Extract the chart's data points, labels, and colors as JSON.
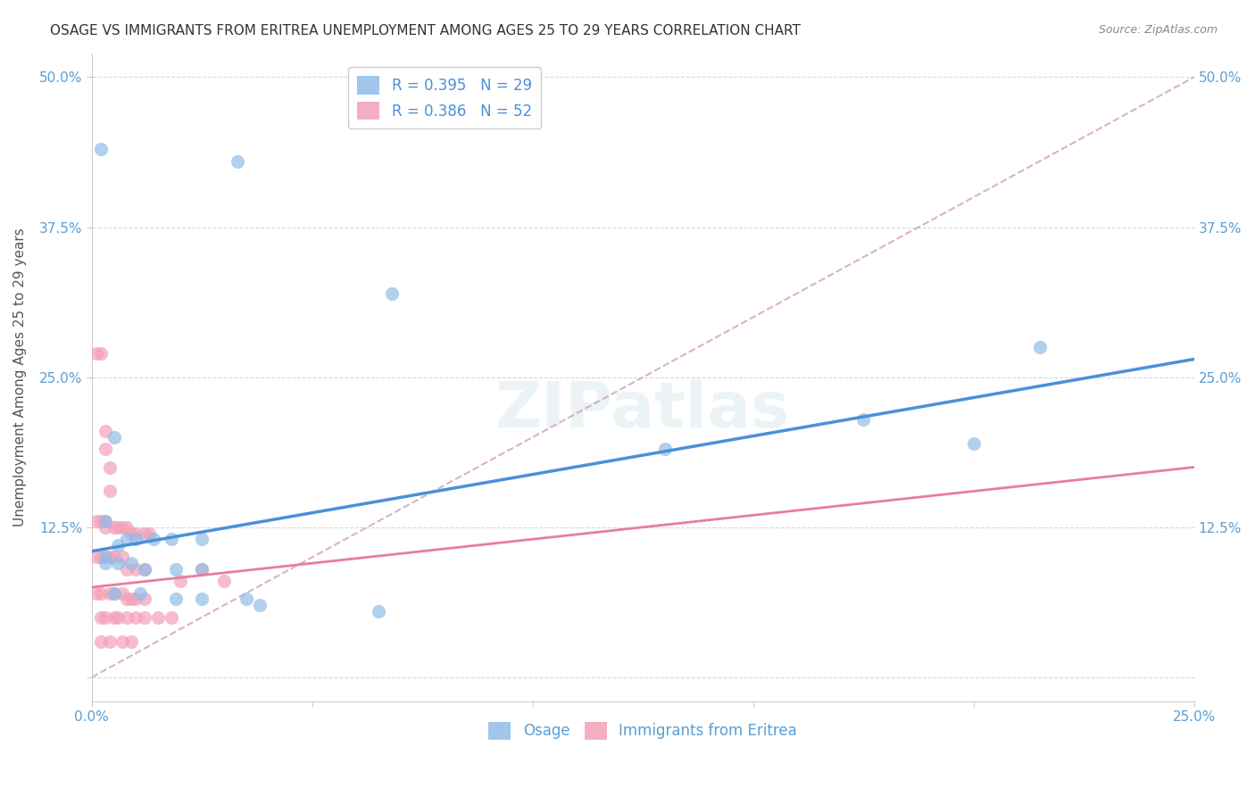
{
  "title": "OSAGE VS IMMIGRANTS FROM ERITREA UNEMPLOYMENT AMONG AGES 25 TO 29 YEARS CORRELATION CHART",
  "source": "Source: ZipAtlas.com",
  "xlabel": "",
  "ylabel": "Unemployment Among Ages 25 to 29 years",
  "xlim": [
    0,
    0.25
  ],
  "ylim": [
    -0.02,
    0.52
  ],
  "xticks": [
    0.0,
    0.05,
    0.1,
    0.15,
    0.2,
    0.25
  ],
  "yticks": [
    0.0,
    0.125,
    0.25,
    0.375,
    0.5
  ],
  "xtick_labels": [
    "0.0%",
    "",
    "",
    "",
    "",
    "25.0%"
  ],
  "ytick_labels": [
    "",
    "12.5%",
    "25.0%",
    "37.5%",
    "50.0%"
  ],
  "watermark": "ZIPatlas",
  "legend_entries": [
    {
      "label": "R = 0.395   N = 29",
      "color": "#a8c4e0"
    },
    {
      "label": "R = 0.386   N = 52",
      "color": "#f4a7b9"
    }
  ],
  "osage_R": 0.395,
  "osage_N": 29,
  "eritrea_R": 0.386,
  "eritrea_N": 52,
  "osage_scatter": [
    [
      0.002,
      0.44
    ],
    [
      0.033,
      0.43
    ],
    [
      0.068,
      0.32
    ],
    [
      0.005,
      0.2
    ],
    [
      0.003,
      0.13
    ],
    [
      0.006,
      0.11
    ],
    [
      0.003,
      0.1
    ],
    [
      0.008,
      0.115
    ],
    [
      0.01,
      0.115
    ],
    [
      0.014,
      0.115
    ],
    [
      0.018,
      0.115
    ],
    [
      0.025,
      0.115
    ],
    [
      0.003,
      0.095
    ],
    [
      0.006,
      0.095
    ],
    [
      0.009,
      0.095
    ],
    [
      0.012,
      0.09
    ],
    [
      0.019,
      0.09
    ],
    [
      0.025,
      0.09
    ],
    [
      0.005,
      0.07
    ],
    [
      0.011,
      0.07
    ],
    [
      0.019,
      0.065
    ],
    [
      0.025,
      0.065
    ],
    [
      0.035,
      0.065
    ],
    [
      0.038,
      0.06
    ],
    [
      0.065,
      0.055
    ],
    [
      0.13,
      0.19
    ],
    [
      0.175,
      0.215
    ],
    [
      0.2,
      0.195
    ],
    [
      0.215,
      0.275
    ]
  ],
  "eritrea_scatter": [
    [
      0.001,
      0.27
    ],
    [
      0.002,
      0.27
    ],
    [
      0.003,
      0.205
    ],
    [
      0.003,
      0.19
    ],
    [
      0.004,
      0.175
    ],
    [
      0.004,
      0.155
    ],
    [
      0.001,
      0.13
    ],
    [
      0.002,
      0.13
    ],
    [
      0.003,
      0.13
    ],
    [
      0.003,
      0.125
    ],
    [
      0.005,
      0.125
    ],
    [
      0.006,
      0.125
    ],
    [
      0.007,
      0.125
    ],
    [
      0.008,
      0.125
    ],
    [
      0.009,
      0.12
    ],
    [
      0.01,
      0.12
    ],
    [
      0.012,
      0.12
    ],
    [
      0.013,
      0.12
    ],
    [
      0.001,
      0.1
    ],
    [
      0.002,
      0.1
    ],
    [
      0.003,
      0.1
    ],
    [
      0.004,
      0.1
    ],
    [
      0.005,
      0.1
    ],
    [
      0.007,
      0.1
    ],
    [
      0.008,
      0.09
    ],
    [
      0.01,
      0.09
    ],
    [
      0.012,
      0.09
    ],
    [
      0.001,
      0.07
    ],
    [
      0.002,
      0.07
    ],
    [
      0.004,
      0.07
    ],
    [
      0.005,
      0.07
    ],
    [
      0.007,
      0.07
    ],
    [
      0.008,
      0.065
    ],
    [
      0.009,
      0.065
    ],
    [
      0.01,
      0.065
    ],
    [
      0.012,
      0.065
    ],
    [
      0.002,
      0.05
    ],
    [
      0.003,
      0.05
    ],
    [
      0.005,
      0.05
    ],
    [
      0.006,
      0.05
    ],
    [
      0.008,
      0.05
    ],
    [
      0.01,
      0.05
    ],
    [
      0.012,
      0.05
    ],
    [
      0.015,
      0.05
    ],
    [
      0.018,
      0.05
    ],
    [
      0.002,
      0.03
    ],
    [
      0.004,
      0.03
    ],
    [
      0.007,
      0.03
    ],
    [
      0.009,
      0.03
    ],
    [
      0.02,
      0.08
    ],
    [
      0.025,
      0.09
    ],
    [
      0.03,
      0.08
    ]
  ],
  "osage_line_color": "#4a90d9",
  "osage_line": {
    "x0": 0.0,
    "y0": 0.105,
    "x1": 0.25,
    "y1": 0.265
  },
  "eritrea_line_color": "#e87ca0",
  "eritrea_line": {
    "x0": 0.0,
    "y0": 0.075,
    "x1": 0.25,
    "y1": 0.175
  },
  "diag_line_color": "#d0a0b0",
  "diag_line": {
    "x0": 0.0,
    "y0": 0.0,
    "x1": 0.25,
    "y1": 0.5
  },
  "scatter_size": 120,
  "osage_color": "#90bce8",
  "eritrea_color": "#f4a0b8",
  "title_fontsize": 11,
  "axis_label_fontsize": 11,
  "tick_fontsize": 11,
  "background_color": "#ffffff",
  "grid_color": "#d0d8e8",
  "title_color": "#333333",
  "axis_color": "#5a9fd4",
  "tick_color": "#5a9fd4"
}
